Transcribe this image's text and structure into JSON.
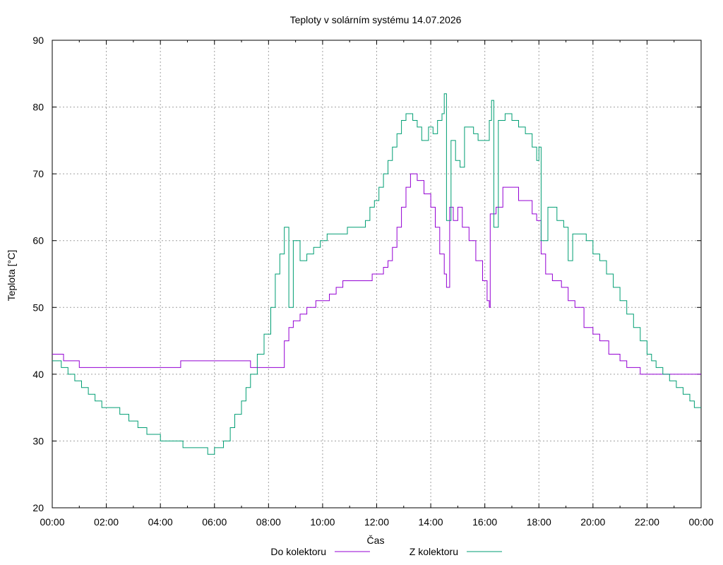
{
  "chart_data": {
    "type": "line",
    "title": "Teploty v solárním systému 14.07.2026",
    "xlabel": "Čas",
    "ylabel": "Teplota [°C]",
    "xlim": [
      "00:00",
      "24:00"
    ],
    "ylim": [
      20,
      90
    ],
    "x_ticks": [
      "00:00",
      "02:00",
      "04:00",
      "06:00",
      "08:00",
      "10:00",
      "12:00",
      "14:00",
      "16:00",
      "18:00",
      "20:00",
      "22:00",
      "00:00"
    ],
    "y_ticks": [
      "20",
      "30",
      "40",
      "50",
      "60",
      "70",
      "80",
      "90"
    ],
    "grid": true,
    "legend_position": "bottom-center",
    "series": [
      {
        "name": "Do kolektoru",
        "color": "#9400d3",
        "points": [
          [
            "00:00",
            43
          ],
          [
            "00:25",
            43
          ],
          [
            "00:25",
            42
          ],
          [
            "01:00",
            42
          ],
          [
            "01:00",
            41
          ],
          [
            "04:45",
            41
          ],
          [
            "04:45",
            42
          ],
          [
            "07:20",
            42
          ],
          [
            "07:20",
            41
          ],
          [
            "08:35",
            41
          ],
          [
            "08:35",
            45
          ],
          [
            "08:45",
            47
          ],
          [
            "08:55",
            48
          ],
          [
            "09:10",
            49
          ],
          [
            "09:25",
            50
          ],
          [
            "09:45",
            51
          ],
          [
            "10:15",
            52
          ],
          [
            "10:30",
            53
          ],
          [
            "10:45",
            54
          ],
          [
            "11:40",
            54
          ],
          [
            "11:50",
            55
          ],
          [
            "12:00",
            55
          ],
          [
            "12:15",
            56
          ],
          [
            "12:25",
            57
          ],
          [
            "12:35",
            59
          ],
          [
            "12:45",
            62
          ],
          [
            "12:55",
            65
          ],
          [
            "13:05",
            68
          ],
          [
            "13:15",
            70
          ],
          [
            "13:30",
            69
          ],
          [
            "13:45",
            67
          ],
          [
            "14:00",
            65
          ],
          [
            "14:10",
            62
          ],
          [
            "14:20",
            58
          ],
          [
            "14:30",
            55
          ],
          [
            "14:35",
            53
          ],
          [
            "14:42",
            65
          ],
          [
            "14:50",
            63
          ],
          [
            "15:00",
            65
          ],
          [
            "15:10",
            62
          ],
          [
            "15:25",
            60
          ],
          [
            "15:40",
            57
          ],
          [
            "15:55",
            54
          ],
          [
            "16:05",
            51
          ],
          [
            "16:10",
            50
          ],
          [
            "16:12",
            64
          ],
          [
            "16:25",
            65
          ],
          [
            "16:40",
            68
          ],
          [
            "17:00",
            68
          ],
          [
            "17:15",
            66
          ],
          [
            "17:30",
            66
          ],
          [
            "17:45",
            64
          ],
          [
            "17:55",
            63
          ],
          [
            "18:05",
            58
          ],
          [
            "18:15",
            55
          ],
          [
            "18:30",
            54
          ],
          [
            "18:50",
            53
          ],
          [
            "19:05",
            51
          ],
          [
            "19:20",
            50
          ],
          [
            "19:40",
            47
          ],
          [
            "20:00",
            46
          ],
          [
            "20:15",
            45
          ],
          [
            "20:35",
            43
          ],
          [
            "21:00",
            42
          ],
          [
            "21:15",
            41
          ],
          [
            "21:45",
            40
          ],
          [
            "24:00",
            40
          ]
        ]
      },
      {
        "name": "Z kolektoru",
        "color": "#009e73",
        "points": [
          [
            "00:00",
            42
          ],
          [
            "00:20",
            41
          ],
          [
            "00:35",
            40
          ],
          [
            "00:50",
            39
          ],
          [
            "01:05",
            38
          ],
          [
            "01:20",
            37
          ],
          [
            "01:35",
            36
          ],
          [
            "01:50",
            35
          ],
          [
            "02:20",
            35
          ],
          [
            "02:30",
            34
          ],
          [
            "02:50",
            33
          ],
          [
            "03:10",
            32
          ],
          [
            "03:30",
            31
          ],
          [
            "03:45",
            31
          ],
          [
            "04:00",
            30
          ],
          [
            "04:45",
            30
          ],
          [
            "04:50",
            29
          ],
          [
            "05:40",
            29
          ],
          [
            "05:45",
            28
          ],
          [
            "06:00",
            29
          ],
          [
            "06:20",
            30
          ],
          [
            "06:35",
            32
          ],
          [
            "06:45",
            34
          ],
          [
            "07:00",
            36
          ],
          [
            "07:10",
            38
          ],
          [
            "07:20",
            40
          ],
          [
            "07:35",
            43
          ],
          [
            "07:50",
            46
          ],
          [
            "08:05",
            50
          ],
          [
            "08:15",
            55
          ],
          [
            "08:25",
            58
          ],
          [
            "08:35",
            62
          ],
          [
            "08:45",
            50
          ],
          [
            "08:55",
            60
          ],
          [
            "09:10",
            57
          ],
          [
            "09:25",
            58
          ],
          [
            "09:40",
            59
          ],
          [
            "09:55",
            60
          ],
          [
            "10:10",
            61
          ],
          [
            "10:40",
            61
          ],
          [
            "10:55",
            62
          ],
          [
            "11:25",
            62
          ],
          [
            "11:35",
            63
          ],
          [
            "11:45",
            65
          ],
          [
            "11:55",
            66
          ],
          [
            "12:05",
            68
          ],
          [
            "12:15",
            70
          ],
          [
            "12:25",
            72
          ],
          [
            "12:35",
            74
          ],
          [
            "12:45",
            76
          ],
          [
            "12:55",
            78
          ],
          [
            "13:05",
            79
          ],
          [
            "13:20",
            78
          ],
          [
            "13:30",
            77
          ],
          [
            "13:40",
            75
          ],
          [
            "13:55",
            77
          ],
          [
            "14:05",
            76
          ],
          [
            "14:15",
            78
          ],
          [
            "14:25",
            79
          ],
          [
            "14:30",
            82
          ],
          [
            "14:35",
            63
          ],
          [
            "14:45",
            75
          ],
          [
            "14:55",
            72
          ],
          [
            "15:05",
            71
          ],
          [
            "15:15",
            77
          ],
          [
            "15:25",
            77
          ],
          [
            "15:35",
            76
          ],
          [
            "15:45",
            75
          ],
          [
            "16:00",
            75
          ],
          [
            "16:10",
            78
          ],
          [
            "16:15",
            81
          ],
          [
            "16:20",
            62
          ],
          [
            "16:30",
            78
          ],
          [
            "16:45",
            79
          ],
          [
            "17:00",
            78
          ],
          [
            "17:15",
            77
          ],
          [
            "17:30",
            76
          ],
          [
            "17:45",
            74
          ],
          [
            "17:55",
            72
          ],
          [
            "18:00",
            74
          ],
          [
            "18:05",
            60
          ],
          [
            "18:20",
            65
          ],
          [
            "18:40",
            63
          ],
          [
            "18:55",
            62
          ],
          [
            "19:05",
            57
          ],
          [
            "19:15",
            61
          ],
          [
            "19:30",
            61
          ],
          [
            "19:45",
            60
          ],
          [
            "20:00",
            58
          ],
          [
            "20:15",
            57
          ],
          [
            "20:30",
            55
          ],
          [
            "20:45",
            53
          ],
          [
            "21:00",
            51
          ],
          [
            "21:15",
            49
          ],
          [
            "21:30",
            47
          ],
          [
            "21:45",
            45
          ],
          [
            "22:00",
            43
          ],
          [
            "22:10",
            42
          ],
          [
            "22:20",
            41
          ],
          [
            "22:35",
            40
          ],
          [
            "22:50",
            39
          ],
          [
            "23:05",
            38
          ],
          [
            "23:20",
            37
          ],
          [
            "23:35",
            36
          ],
          [
            "23:45",
            35
          ],
          [
            "24:00",
            35
          ]
        ]
      }
    ]
  }
}
